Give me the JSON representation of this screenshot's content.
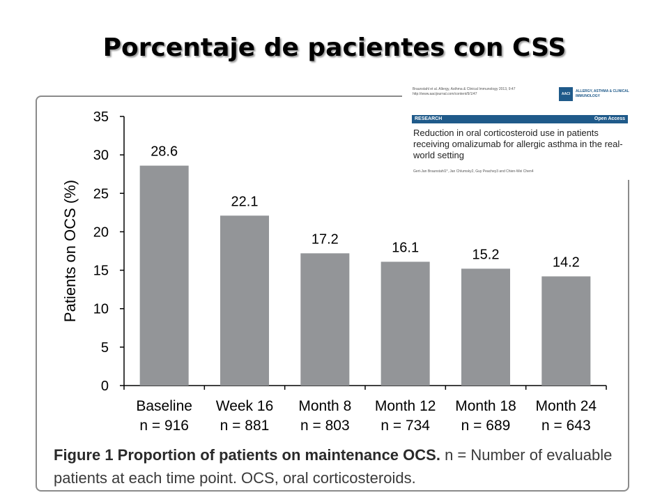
{
  "slide": {
    "title": "Porcentaje de pacientes con CSS"
  },
  "paper": {
    "citation": "Braunstahl et al. Allergy, Asthma & Clinical Immunology 2013, 9:47",
    "url": "http://www.aacijournal.com/content/9/1/47",
    "journal_logo": "AACI",
    "journal_name": "ALLERGY, ASTHMA & CLINICAL IMMUNOLOGY",
    "section": "RESEARCH",
    "access": "Open Access",
    "title": "Reduction in oral corticosteroid use in patients receiving omalizumab for allergic asthma in the real-world setting",
    "authors": "Gert-Jan Braunstahl1*, Jan Chlumsky2, Guy Peachey3 and Chien-Wei Chen4"
  },
  "figure": {
    "caption_bold": "Figure 1 Proportion of patients on maintenance OCS.",
    "caption_rest": " n = Number of evaluable patients at each time point. OCS, oral corticosteroids."
  },
  "chart_data": {
    "type": "bar",
    "categories": [
      "Baseline",
      "Week 16",
      "Month 8",
      "Month 12",
      "Month 18",
      "Month 24"
    ],
    "sublabels": [
      "n = 916",
      "n = 881",
      "n = 803",
      "n = 734",
      "n = 689",
      "n = 643"
    ],
    "values": [
      28.6,
      22.1,
      17.2,
      16.1,
      15.2,
      14.2
    ],
    "value_labels": [
      "28.6",
      "22.1",
      "17.2",
      "16.1",
      "15.2",
      "14.2"
    ],
    "ylabel": "Patients on OCS (%)",
    "xlabel": "",
    "ylim": [
      0,
      35
    ],
    "yticks": [
      0,
      5,
      10,
      15,
      20,
      25,
      30,
      35
    ],
    "bar_color": "#939598",
    "grid": false
  }
}
